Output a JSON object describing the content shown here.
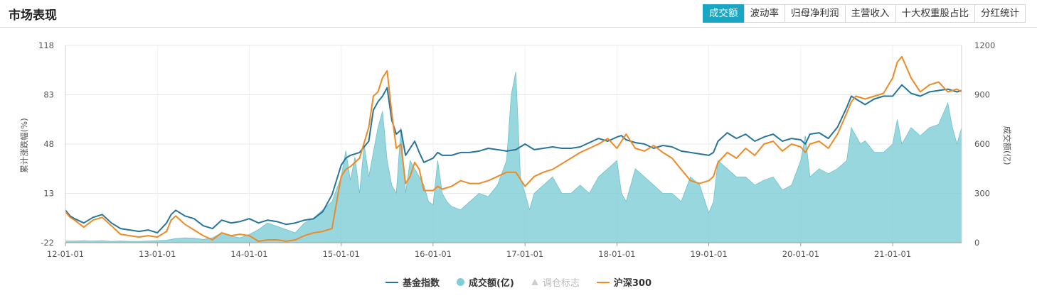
{
  "header": {
    "title": "市场表现",
    "tabs": [
      {
        "label": "成交额",
        "active": true
      },
      {
        "label": "波动率",
        "active": false
      },
      {
        "label": "归母净利润",
        "active": false
      },
      {
        "label": "主营收入",
        "active": false
      },
      {
        "label": "十大权重股占比",
        "active": false
      },
      {
        "label": "分红统计",
        "active": false
      }
    ]
  },
  "legend": [
    {
      "label": "基金指数",
      "type": "line",
      "color": "#27759a",
      "enabled": true
    },
    {
      "label": "成交额(亿)",
      "type": "dot",
      "color": "#7fcdd6",
      "enabled": true
    },
    {
      "label": "调仓标志",
      "type": "triangle",
      "color": "#cfcfcf",
      "enabled": false
    },
    {
      "label": "沪深300",
      "type": "line",
      "color": "#ee8a25",
      "enabled": true
    }
  ],
  "chart_data": {
    "type": "line",
    "ylabel": "累计涨跌幅(%)",
    "y2label": "成交额(亿)",
    "ylim": [
      -22,
      118
    ],
    "y2lim": [
      0,
      1200
    ],
    "yticks": [
      "118",
      "83",
      "48",
      "13",
      "-22"
    ],
    "y2ticks": [
      "1200",
      "900",
      "600",
      "300",
      "0"
    ],
    "xlim": [
      2012.0,
      2021.75
    ],
    "xticks": [
      {
        "label": "12-01-01",
        "x": 2012.0
      },
      {
        "label": "13-01-01",
        "x": 2013.0
      },
      {
        "label": "14-01-01",
        "x": 2014.0
      },
      {
        "label": "15-01-01",
        "x": 2015.0
      },
      {
        "label": "16-01-01",
        "x": 2016.0
      },
      {
        "label": "17-01-01",
        "x": 2017.0
      },
      {
        "label": "18-01-01",
        "x": 2018.0
      },
      {
        "label": "19-01-01",
        "x": 2019.0
      },
      {
        "label": "20-01-01",
        "x": 2020.0
      },
      {
        "label": "21-01-01",
        "x": 2021.0
      }
    ],
    "grid": true,
    "legend_position": "bottom",
    "series": [
      {
        "name": "基金指数",
        "axis": "left",
        "color": "#27759a",
        "x": [
          2012.0,
          2012.05,
          2012.1,
          2012.2,
          2012.3,
          2012.4,
          2012.5,
          2012.6,
          2012.7,
          2012.8,
          2012.9,
          2013.0,
          2013.1,
          2013.15,
          2013.2,
          2013.3,
          2013.4,
          2013.5,
          2013.6,
          2013.7,
          2013.8,
          2013.9,
          2014.0,
          2014.1,
          2014.2,
          2014.3,
          2014.4,
          2014.5,
          2014.6,
          2014.7,
          2014.8,
          2014.9,
          2015.0,
          2015.05,
          2015.1,
          2015.2,
          2015.3,
          2015.35,
          2015.4,
          2015.45,
          2015.5,
          2015.55,
          2015.6,
          2015.65,
          2015.7,
          2015.75,
          2015.8,
          2015.85,
          2015.9,
          2016.0,
          2016.05,
          2016.1,
          2016.2,
          2016.3,
          2016.4,
          2016.5,
          2016.6,
          2016.7,
          2016.8,
          2016.9,
          2017.0,
          2017.1,
          2017.2,
          2017.3,
          2017.4,
          2017.5,
          2017.6,
          2017.7,
          2017.8,
          2017.9,
          2018.0,
          2018.05,
          2018.1,
          2018.2,
          2018.3,
          2018.4,
          2018.5,
          2018.6,
          2018.7,
          2018.8,
          2018.9,
          2019.0,
          2019.05,
          2019.1,
          2019.2,
          2019.3,
          2019.4,
          2019.5,
          2019.6,
          2019.7,
          2019.8,
          2019.9,
          2020.0,
          2020.05,
          2020.1,
          2020.2,
          2020.3,
          2020.4,
          2020.5,
          2020.55,
          2020.6,
          2020.7,
          2020.8,
          2020.9,
          2021.0,
          2021.05,
          2021.1,
          2021.2,
          2021.3,
          2021.4,
          2021.5,
          2021.6,
          2021.7,
          2021.75
        ],
        "values": [
          1,
          -3,
          -5,
          -8,
          -4,
          -2,
          -8,
          -12,
          -13,
          -14,
          -13,
          -15,
          -8,
          -2,
          1,
          -3,
          -5,
          -10,
          -12,
          -6,
          -8,
          -7,
          -5,
          -8,
          -6,
          -7,
          -9,
          -8,
          -6,
          -5,
          0,
          12,
          33,
          38,
          40,
          42,
          50,
          72,
          78,
          82,
          88,
          65,
          55,
          58,
          40,
          45,
          50,
          42,
          35,
          38,
          42,
          40,
          40,
          42,
          42,
          43,
          45,
          44,
          43,
          44,
          48,
          44,
          45,
          46,
          45,
          45,
          46,
          49,
          52,
          50,
          53,
          54,
          51,
          49,
          48,
          45,
          47,
          46,
          43,
          42,
          41,
          40,
          42,
          50,
          56,
          52,
          55,
          50,
          53,
          55,
          50,
          52,
          51,
          48,
          55,
          56,
          52,
          60,
          74,
          82,
          80,
          76,
          80,
          82,
          82,
          86,
          90,
          84,
          82,
          85,
          86,
          87,
          85,
          86
        ]
      },
      {
        "name": "沪深300",
        "axis": "left",
        "color": "#ee8a25",
        "x": [
          2012.0,
          2012.05,
          2012.1,
          2012.2,
          2012.3,
          2012.4,
          2012.5,
          2012.6,
          2012.7,
          2012.8,
          2012.9,
          2013.0,
          2013.1,
          2013.15,
          2013.2,
          2013.3,
          2013.4,
          2013.5,
          2013.6,
          2013.7,
          2013.8,
          2013.9,
          2014.0,
          2014.1,
          2014.2,
          2014.3,
          2014.4,
          2014.5,
          2014.6,
          2014.7,
          2014.8,
          2014.9,
          2015.0,
          2015.05,
          2015.1,
          2015.2,
          2015.3,
          2015.35,
          2015.4,
          2015.45,
          2015.5,
          2015.55,
          2015.6,
          2015.65,
          2015.7,
          2015.75,
          2015.8,
          2015.85,
          2015.9,
          2016.0,
          2016.05,
          2016.1,
          2016.2,
          2016.3,
          2016.4,
          2016.5,
          2016.6,
          2016.7,
          2016.8,
          2016.9,
          2017.0,
          2017.1,
          2017.2,
          2017.3,
          2017.4,
          2017.5,
          2017.6,
          2017.7,
          2017.8,
          2017.9,
          2018.0,
          2018.05,
          2018.1,
          2018.2,
          2018.3,
          2018.4,
          2018.5,
          2018.6,
          2018.7,
          2018.8,
          2018.9,
          2019.0,
          2019.05,
          2019.1,
          2019.2,
          2019.3,
          2019.4,
          2019.5,
          2019.6,
          2019.7,
          2019.8,
          2019.9,
          2020.0,
          2020.05,
          2020.1,
          2020.2,
          2020.3,
          2020.4,
          2020.5,
          2020.55,
          2020.6,
          2020.7,
          2020.8,
          2020.9,
          2021.0,
          2021.05,
          2021.1,
          2021.2,
          2021.3,
          2021.4,
          2021.5,
          2021.6,
          2021.7,
          2021.75
        ],
        "values": [
          0,
          -4,
          -6,
          -11,
          -6,
          -4,
          -10,
          -16,
          -17,
          -18,
          -17,
          -18,
          -14,
          -6,
          -3,
          -9,
          -13,
          -17,
          -20,
          -15,
          -17,
          -16,
          -17,
          -21,
          -20,
          -20,
          -21,
          -20,
          -17,
          -15,
          -14,
          -12,
          25,
          30,
          32,
          38,
          60,
          82,
          85,
          95,
          100,
          70,
          45,
          48,
          20,
          25,
          35,
          30,
          15,
          15,
          18,
          16,
          18,
          22,
          20,
          20,
          22,
          25,
          28,
          28,
          18,
          25,
          28,
          30,
          34,
          38,
          42,
          45,
          48,
          52,
          45,
          50,
          55,
          45,
          43,
          47,
          42,
          38,
          30,
          22,
          20,
          22,
          25,
          35,
          42,
          38,
          45,
          40,
          48,
          50,
          43,
          48,
          46,
          42,
          48,
          50,
          45,
          55,
          70,
          78,
          82,
          80,
          82,
          84,
          95,
          106,
          110,
          95,
          85,
          90,
          92,
          85,
          87,
          85
        ]
      },
      {
        "name": "成交额(亿)",
        "axis": "right",
        "color": "#7fcdd6",
        "style": "area",
        "x": [
          2012.0,
          2012.1,
          2012.2,
          2012.3,
          2012.4,
          2012.5,
          2012.6,
          2012.7,
          2012.8,
          2012.9,
          2013.0,
          2013.1,
          2013.2,
          2013.3,
          2013.4,
          2013.5,
          2013.6,
          2013.7,
          2013.8,
          2013.9,
          2014.0,
          2014.1,
          2014.2,
          2014.3,
          2014.4,
          2014.5,
          2014.6,
          2014.7,
          2014.8,
          2014.9,
          2015.0,
          2015.05,
          2015.1,
          2015.15,
          2015.2,
          2015.25,
          2015.3,
          2015.35,
          2015.4,
          2015.45,
          2015.5,
          2015.55,
          2015.6,
          2015.65,
          2015.7,
          2015.75,
          2015.8,
          2015.85,
          2015.9,
          2015.95,
          2016.0,
          2016.05,
          2016.1,
          2016.15,
          2016.2,
          2016.3,
          2016.4,
          2016.5,
          2016.6,
          2016.7,
          2016.8,
          2016.85,
          2016.9,
          2016.95,
          2017.0,
          2017.05,
          2017.1,
          2017.2,
          2017.3,
          2017.4,
          2017.5,
          2017.6,
          2017.7,
          2017.8,
          2017.9,
          2018.0,
          2018.05,
          2018.1,
          2018.2,
          2018.3,
          2018.4,
          2018.5,
          2018.6,
          2018.7,
          2018.8,
          2018.9,
          2019.0,
          2019.05,
          2019.1,
          2019.2,
          2019.3,
          2019.4,
          2019.5,
          2019.6,
          2019.7,
          2019.8,
          2019.9,
          2020.0,
          2020.05,
          2020.1,
          2020.2,
          2020.3,
          2020.4,
          2020.5,
          2020.55,
          2020.6,
          2020.65,
          2020.7,
          2020.8,
          2020.9,
          2021.0,
          2021.05,
          2021.1,
          2021.15,
          2021.2,
          2021.3,
          2021.4,
          2021.5,
          2021.6,
          2021.65,
          2021.7,
          2021.75
        ],
        "values": [
          10,
          10,
          12,
          10,
          12,
          8,
          10,
          8,
          8,
          10,
          12,
          15,
          25,
          30,
          28,
          20,
          30,
          60,
          40,
          30,
          50,
          80,
          120,
          100,
          80,
          60,
          120,
          150,
          200,
          250,
          400,
          560,
          380,
          520,
          300,
          600,
          400,
          550,
          700,
          800,
          500,
          350,
          300,
          700,
          300,
          500,
          450,
          400,
          350,
          250,
          230,
          500,
          300,
          250,
          220,
          200,
          250,
          300,
          280,
          350,
          500,
          900,
          1040,
          400,
          300,
          200,
          300,
          350,
          400,
          300,
          300,
          350,
          300,
          400,
          450,
          500,
          300,
          250,
          450,
          400,
          350,
          300,
          300,
          250,
          400,
          350,
          180,
          250,
          500,
          450,
          400,
          400,
          350,
          380,
          400,
          320,
          350,
          500,
          650,
          400,
          450,
          420,
          450,
          500,
          700,
          650,
          600,
          620,
          550,
          550,
          600,
          750,
          600,
          650,
          700,
          650,
          700,
          720,
          850,
          700,
          600,
          700
        ]
      }
    ]
  }
}
